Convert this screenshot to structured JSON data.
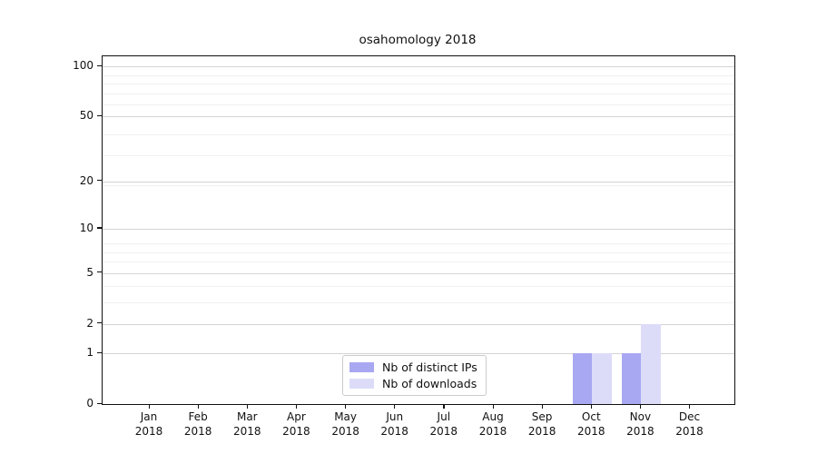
{
  "title": "osahomology 2018",
  "chart_data": {
    "type": "bar",
    "title": "osahomology 2018",
    "x_months": [
      "Jan",
      "Feb",
      "Mar",
      "Apr",
      "May",
      "Jun",
      "Jul",
      "Aug",
      "Sep",
      "Oct",
      "Nov",
      "Dec"
    ],
    "x_year": "2018",
    "categories": [
      "Jan 2018",
      "Feb 2018",
      "Mar 2018",
      "Apr 2018",
      "May 2018",
      "Jun 2018",
      "Jul 2018",
      "Aug 2018",
      "Sep 2018",
      "Oct 2018",
      "Nov 2018",
      "Dec 2018"
    ],
    "series": [
      {
        "name": "Nb of distinct IPs",
        "color": "#a8a8f2",
        "values": [
          0,
          0,
          0,
          0,
          0,
          0,
          0,
          0,
          0,
          1,
          1,
          0
        ]
      },
      {
        "name": "Nb of downloads",
        "color": "#dcdcf9",
        "values": [
          0,
          0,
          0,
          0,
          0,
          0,
          0,
          0,
          0,
          1,
          2,
          0
        ]
      }
    ],
    "y_ticks": [
      0,
      1,
      2,
      5,
      10,
      20,
      50,
      100
    ],
    "y_scale": "log1p",
    "ylim": [
      0,
      115
    ],
    "grid": "horizontal-major-and-minor",
    "legend_position": "inside-bottom-center"
  },
  "colors": {
    "bar_distinct_ips": "#a8a8f2",
    "bar_downloads": "#dcdcf9",
    "grid_major": "#d4d4d4",
    "grid_minor": "#f1f1f1",
    "axis": "#111111",
    "text": "#111111",
    "legend_border": "#cccccc",
    "background": "#ffffff"
  }
}
